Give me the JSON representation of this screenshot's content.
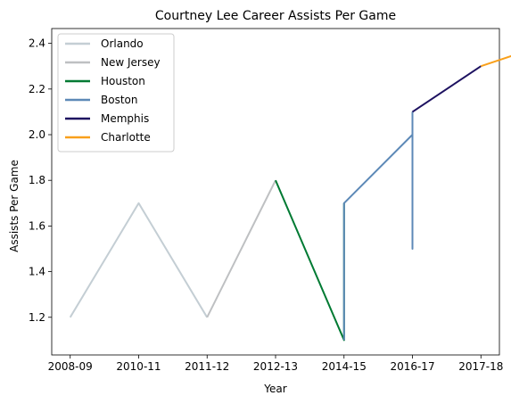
{
  "chart_data": {
    "type": "line",
    "title": "Courtney Lee Career Assists Per Game",
    "xlabel": "Year",
    "ylabel": "Assists Per Game",
    "x_ticks": [
      "2008-09",
      "2010-11",
      "2011-12",
      "2012-13",
      "2014-15",
      "2016-17",
      "2017-18"
    ],
    "x_tick_positions": [
      0,
      1,
      2,
      3,
      4,
      5,
      6
    ],
    "y_ticks": [
      1.2,
      1.4,
      1.6,
      1.8,
      2.0,
      2.2,
      2.4
    ],
    "xlim": [
      -0.27,
      6.27
    ],
    "ylim": [
      1.035,
      2.465
    ],
    "grid": false,
    "legend_position": "upper-left",
    "series": [
      {
        "name": "Orlando",
        "color": "#C4CED4",
        "x": [
          0,
          1,
          2
        ],
        "y": [
          1.2,
          1.7,
          1.2
        ]
      },
      {
        "name": "New Jersey",
        "color": "#BEC0C2",
        "x": [
          2,
          3
        ],
        "y": [
          1.2,
          1.8
        ]
      },
      {
        "name": "Houston",
        "color": "#007A33",
        "x": [
          3,
          4,
          4
        ],
        "y": [
          1.8,
          1.1,
          1.7
        ]
      },
      {
        "name": "Boston",
        "color": "#5D89B7",
        "x": [
          4,
          4,
          5,
          5,
          5
        ],
        "y": [
          1.1,
          1.7,
          2.0,
          1.5,
          2.1
        ]
      },
      {
        "name": "Memphis",
        "color": "#1D1160",
        "x": [
          5,
          6
        ],
        "y": [
          2.1,
          2.3
        ]
      },
      {
        "name": "Charlotte",
        "color": "#F9A01B",
        "x": [
          6,
          7
        ],
        "y": [
          2.3,
          2.4
        ]
      }
    ]
  }
}
